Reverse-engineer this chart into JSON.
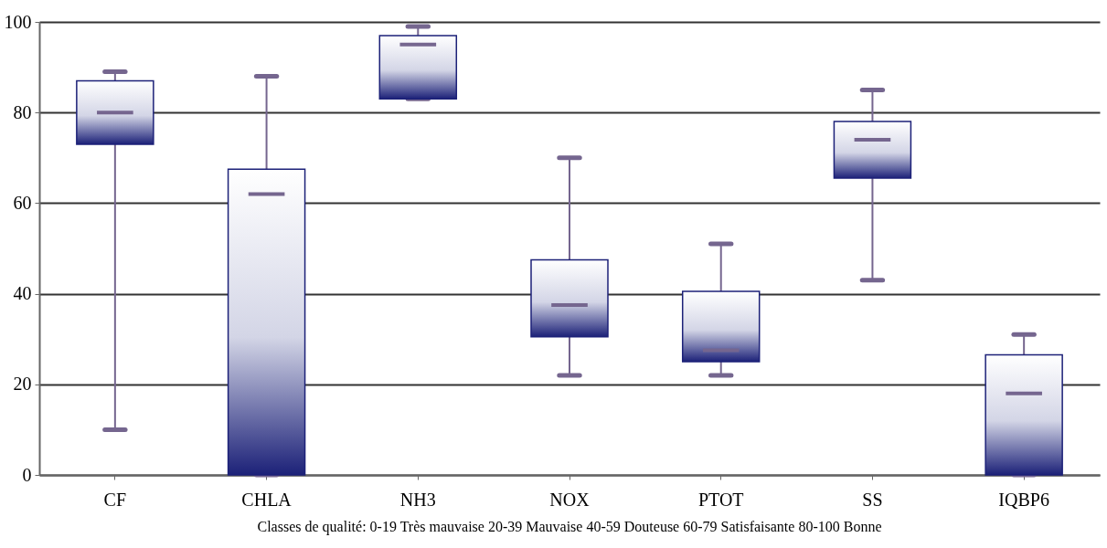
{
  "chart_data": {
    "type": "box",
    "categories": [
      "CF",
      "CHLA",
      "NH3",
      "NOX",
      "PTOT",
      "SS",
      "IQBP6"
    ],
    "series": [
      {
        "color": "#1c2178",
        "boxes": [
          {
            "low": 10,
            "q1": 73,
            "median": 80,
            "q3": 87,
            "high": 89
          },
          {
            "low": 0,
            "q1": 0,
            "median": 62,
            "q3": 67.5,
            "high": 88
          },
          {
            "low": 83,
            "q1": 83,
            "median": 95,
            "q3": 97,
            "high": 99
          },
          {
            "low": 22,
            "q1": 30.5,
            "median": 37.5,
            "q3": 47.5,
            "high": 70
          },
          {
            "low": 22,
            "q1": 25,
            "median": 27.5,
            "q3": 40.5,
            "high": 51
          },
          {
            "low": 43,
            "q1": 65.5,
            "median": 74,
            "q3": 78,
            "high": 85
          },
          {
            "low": 0,
            "q1": 0,
            "median": 18,
            "q3": 26.5,
            "high": 31
          }
        ]
      }
    ],
    "ylim": [
      0,
      100
    ],
    "yticks": [
      0,
      20,
      40,
      60,
      80,
      100
    ],
    "grid": "y",
    "annotations": [
      "Classes de qualité:     0-19 Très mauvaise     20-39 Mauvaise     40-59 Douteuse     60-79 Satisfaisante     80-100 Bonne"
    ]
  }
}
